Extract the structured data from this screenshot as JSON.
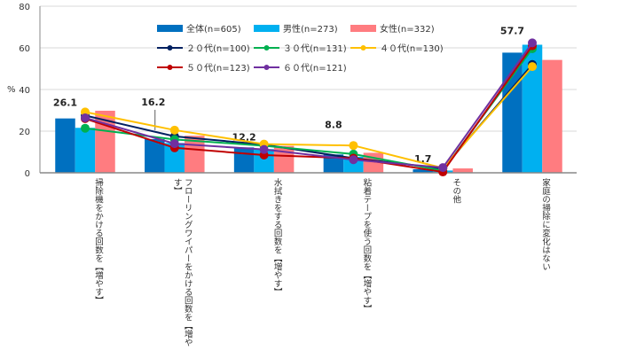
{
  "chart_data": {
    "type": "bar",
    "title": "",
    "xlabel": "",
    "ylabel": "%",
    "ylim": [
      0,
      80
    ],
    "yticks": [
      "0",
      "20",
      "40",
      "60",
      "80"
    ],
    "grid": true,
    "legend_position": "top",
    "categories": [
      "掃除機をかける回数を【増やす】",
      "フローリングワイパーをかける回数を【増やす】",
      "水拭きをする回数を【増やす】",
      "粘着テープを使う回数を【増やす】",
      "その他",
      "家庭の掃除に変化はない"
    ],
    "bar_series": [
      {
        "name": "全体(n=605)",
        "color": "#0070C0",
        "values": [
          26.1,
          16.2,
          12.2,
          8.8,
          1.7,
          57.7
        ],
        "labels": [
          "26.1",
          "16.2",
          "12.2",
          "8.8",
          "1.7",
          "57.7"
        ]
      },
      {
        "name": "男性(n=273)",
        "color": "#00B0F0",
        "values": [
          21.6,
          14.3,
          11.4,
          7.7,
          1.1,
          61.5
        ]
      },
      {
        "name": "女性(n=332)",
        "color": "#FF7C80",
        "values": [
          29.8,
          17.8,
          12.9,
          9.6,
          2.1,
          54.2
        ]
      }
    ],
    "line_series": [
      {
        "name": "２０代(n=100)",
        "color": "#002060",
        "values": [
          27.5,
          17.5,
          13.5,
          7.0,
          2.0,
          52.0
        ]
      },
      {
        "name": "３０代(n=131)",
        "color": "#00B050",
        "values": [
          21.4,
          16.0,
          13.0,
          9.0,
          1.0,
          59.6
        ]
      },
      {
        "name": "４０代(n=130)",
        "color": "#FFC000",
        "values": [
          29.2,
          20.5,
          13.8,
          13.1,
          2.3,
          51.0
        ]
      },
      {
        "name": "５０代(n=123)",
        "color": "#C00000",
        "values": [
          26.0,
          12.0,
          8.5,
          7.0,
          0.4,
          61.0
        ]
      },
      {
        "name": "６０代(n=121)",
        "color": "#7030A0",
        "values": [
          26.4,
          14.0,
          11.2,
          6.3,
          2.5,
          62.4
        ]
      }
    ]
  }
}
